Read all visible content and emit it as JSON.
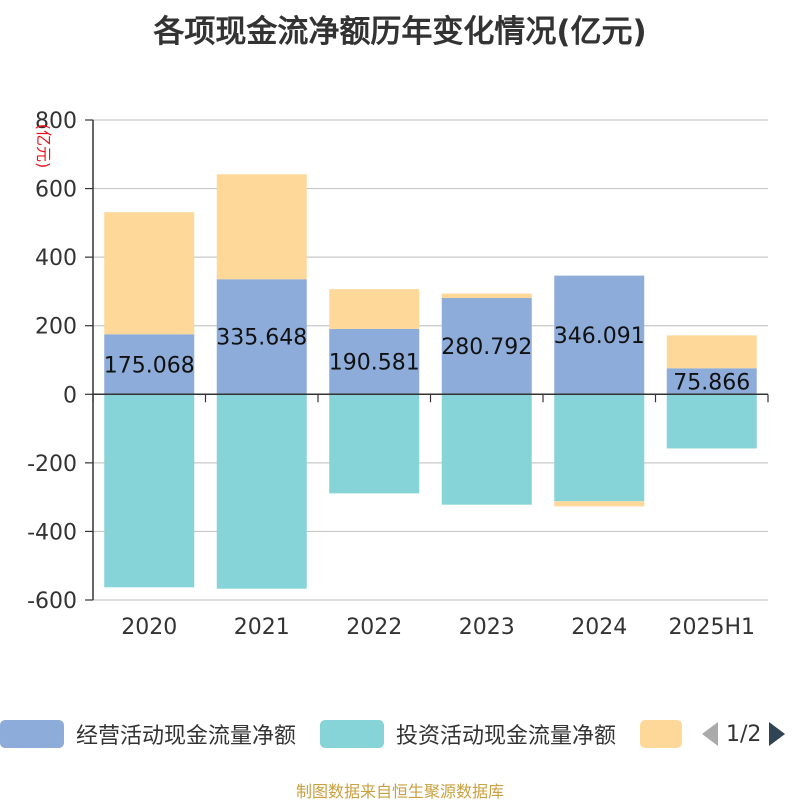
{
  "title": "各项现金流净额历年变化情况(亿元)",
  "source": "制图数据来自恒生聚源数据库",
  "colors": {
    "operating": "#8eacd9",
    "investing": "#86d4d8",
    "financing": "#fdd899",
    "grid": "#c8c8c8",
    "axis": "#333333",
    "pager_active": "#2f4554",
    "pager_inactive": "#aaaaaa"
  },
  "legend": {
    "pager": "1/2",
    "prev_icon": "triangle-left-icon",
    "next_icon": "triangle-right-icon"
  },
  "chart_data": {
    "type": "bar",
    "stacked": true,
    "unit_label": "(亿元)",
    "categories": [
      "2020",
      "2021",
      "2022",
      "2023",
      "2024",
      "2025H1"
    ],
    "ylim": [
      -600,
      800
    ],
    "yticks": [
      800,
      600,
      400,
      200,
      0,
      -200,
      -400,
      -600
    ],
    "grid": true,
    "legend_position": "bottom",
    "series": [
      {
        "name": "经营活动现金流量净额",
        "color_key": "operating",
        "values": [
          175.068,
          335.648,
          190.581,
          280.792,
          346.091,
          75.866
        ],
        "labels": [
          "175.068",
          "335.648",
          "190.581",
          "280.792",
          "346.091",
          "75.866"
        ]
      },
      {
        "name": "投资活动现金流量净额",
        "color_key": "investing",
        "values": [
          -563,
          -567,
          -289,
          -322,
          -312,
          -158
        ]
      },
      {
        "name": "",
        "color_key": "financing",
        "values": [
          356,
          306,
          116,
          13,
          -15,
          96
        ]
      }
    ]
  }
}
